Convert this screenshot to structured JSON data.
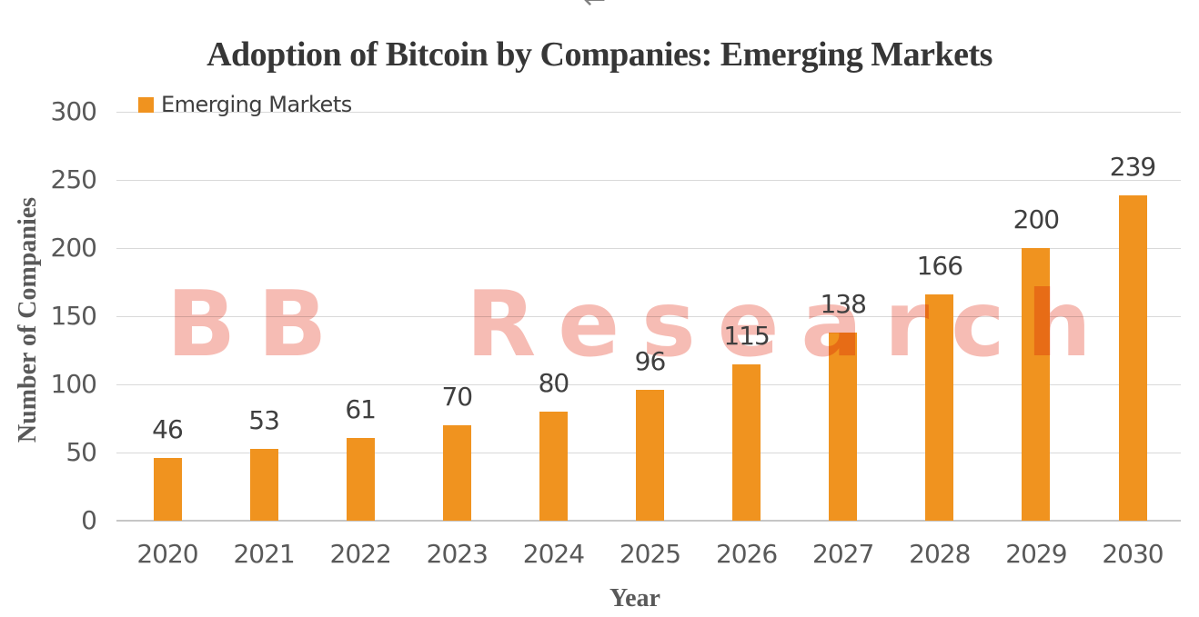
{
  "browser": {
    "back_arrow_icon": "←"
  },
  "chart_data": {
    "type": "bar",
    "title": "Adoption of Bitcoin by Companies: Emerging Markets",
    "xlabel": "Year",
    "ylabel": "Number of Companies",
    "categories": [
      "2020",
      "2021",
      "2022",
      "2023",
      "2024",
      "2025",
      "2026",
      "2027",
      "2028",
      "2029",
      "2030"
    ],
    "series": [
      {
        "name": "Emerging Markets",
        "values": [
          46,
          53,
          61,
          70,
          80,
          96,
          115,
          138,
          166,
          200,
          239
        ],
        "color": "#F0931F"
      }
    ],
    "yticks": [
      0,
      50,
      100,
      150,
      200,
      250,
      300
    ],
    "ylim": [
      0,
      300
    ],
    "grid": true,
    "data_labels": true,
    "legend_position": "top-left"
  },
  "watermark": {
    "text": "BB Research",
    "color": "#ED7969"
  },
  "colors": {
    "bar": "#F0931F",
    "gridline": "#D9D9D9",
    "axis_line": "#C6C6C6",
    "tick_label": "#595959",
    "data_label": "#3F3F3F",
    "title": "#363636",
    "back_arrow": "#808080"
  }
}
